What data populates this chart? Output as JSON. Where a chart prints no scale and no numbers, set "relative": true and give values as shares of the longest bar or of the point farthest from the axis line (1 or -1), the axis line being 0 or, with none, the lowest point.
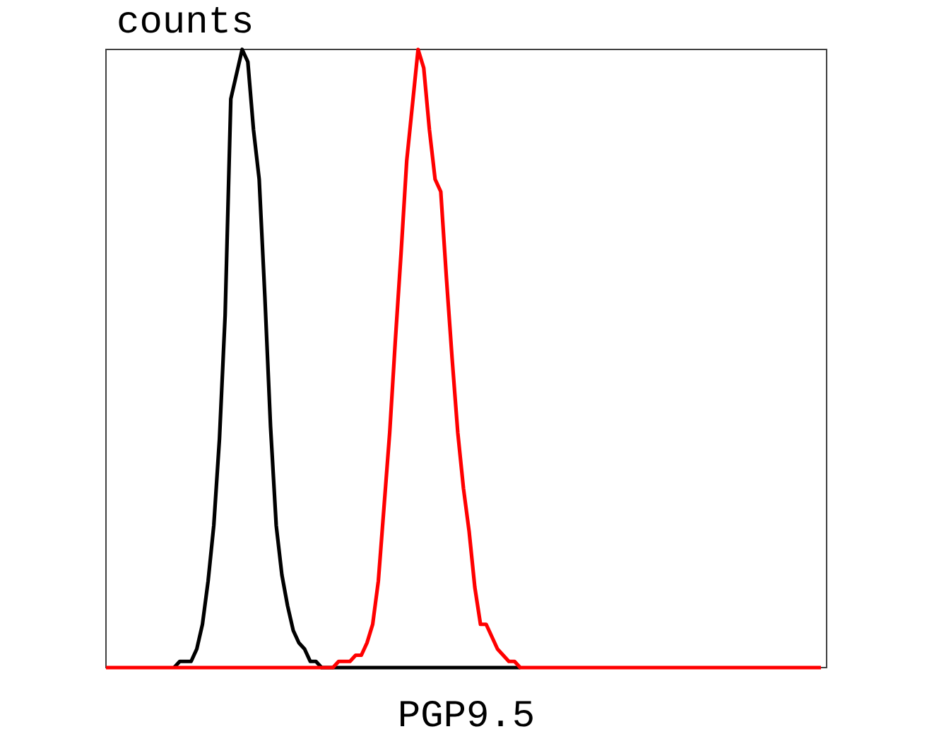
{
  "chart_data": {
    "type": "line",
    "relative": true,
    "xlabel": "PGP9.5",
    "ylabel": "counts",
    "marker": "none",
    "line_style": "solid",
    "categories": [
      null,
      null,
      null,
      null,
      null,
      null,
      null,
      null,
      null,
      null,
      null,
      null,
      null,
      null,
      null,
      null,
      null,
      null,
      null,
      null,
      null,
      null,
      null,
      null,
      null,
      null,
      null,
      null,
      null,
      null,
      null,
      null,
      null,
      null,
      null,
      null,
      null,
      null,
      null,
      null,
      null,
      null,
      null,
      null,
      null,
      null,
      null,
      null,
      null,
      null,
      null,
      null,
      null,
      null,
      null,
      null,
      null,
      null,
      null,
      null,
      null,
      null,
      null,
      null,
      null,
      null,
      null,
      null,
      null,
      null,
      null,
      null,
      null,
      null,
      null,
      null,
      null,
      null,
      null,
      null,
      null,
      null,
      null,
      null,
      null,
      null,
      null,
      null,
      null,
      null,
      null,
      null,
      null,
      null,
      null,
      null,
      null,
      null,
      null,
      null,
      null,
      null,
      null,
      null,
      null,
      null,
      null,
      null,
      null,
      null,
      null,
      null,
      null,
      null,
      null,
      null,
      null,
      null,
      null,
      null,
      null,
      null,
      null,
      null,
      null,
      null,
      null,
      null
    ],
    "series": [
      {
        "color": "#000000",
        "values": [
          null,
          null,
          null,
          null,
          null,
          null,
          null,
          null,
          null,
          null,
          null,
          null,
          0,
          0.01,
          0.01,
          0.01,
          0.03,
          0.07,
          0.14,
          0.23,
          0.37,
          0.57,
          0.92,
          0.96,
          1,
          0.98,
          0.87,
          0.79,
          0.6,
          0.39,
          0.23,
          0.15,
          0.1,
          0.06,
          0.04,
          0.03,
          0.01,
          0.01,
          0,
          0,
          0,
          0,
          0,
          0,
          0,
          0,
          0,
          0,
          0,
          0,
          0,
          0,
          0,
          0,
          0,
          0,
          0,
          0,
          0,
          0,
          0,
          0,
          0,
          0,
          0,
          0,
          0,
          0,
          0,
          0,
          0,
          0,
          0,
          0,
          null,
          null,
          null,
          null,
          null,
          null,
          null,
          null,
          null,
          null,
          null,
          null,
          null,
          null,
          null,
          null,
          null,
          null,
          null,
          null,
          null,
          null,
          null,
          null,
          null,
          null,
          null,
          null,
          null,
          null,
          null,
          null,
          null,
          null,
          null,
          null,
          null,
          null,
          null,
          null,
          null,
          null,
          null,
          null,
          null,
          null,
          null,
          null,
          null,
          null,
          null,
          null,
          null,
          null
        ]
      },
      {
        "color": "#ff0000",
        "values": [
          0,
          0,
          0,
          0,
          0,
          0,
          0,
          0,
          0,
          0,
          0,
          0,
          0,
          0,
          0,
          0,
          0,
          0,
          0,
          0,
          0,
          0,
          0,
          0,
          0,
          0,
          0,
          0,
          0,
          0,
          0,
          0,
          0,
          0,
          0,
          0,
          0,
          0,
          0,
          0,
          0,
          0.01,
          0.01,
          0.01,
          0.02,
          0.02,
          0.04,
          0.07,
          0.14,
          0.26,
          0.38,
          0.53,
          0.67,
          0.82,
          0.91,
          1,
          0.97,
          0.87,
          0.79,
          0.77,
          0.63,
          0.5,
          0.38,
          0.29,
          0.22,
          0.13,
          0.07,
          0.07,
          0.05,
          0.03,
          0.02,
          0.01,
          0.01,
          0,
          0,
          0,
          0,
          0,
          0,
          0,
          0,
          0,
          0,
          0,
          0,
          0,
          0,
          0,
          0,
          0,
          0,
          0,
          0,
          0,
          0,
          0,
          0,
          0,
          0,
          0,
          0,
          0,
          0,
          0,
          0,
          0,
          0,
          0,
          0,
          0,
          0,
          0,
          0,
          0,
          0,
          0,
          0,
          0,
          0,
          0,
          0,
          0,
          0,
          0,
          0,
          0,
          0,
          null
        ]
      }
    ]
  }
}
